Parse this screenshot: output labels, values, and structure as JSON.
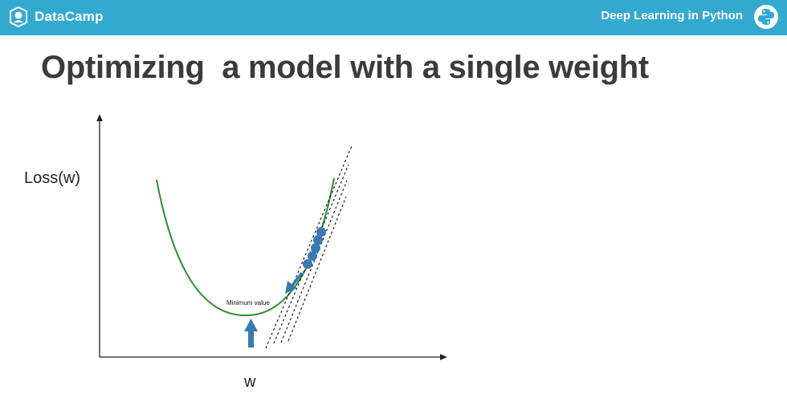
{
  "header": {
    "brand": "DataCamp",
    "course_title": "Deep Learning in Python",
    "brand_icon": "datacamp-logo-icon",
    "course_icon": "python-logo-icon",
    "bar_color": "#33a9d0"
  },
  "slide": {
    "title": "Optimizing  a model with a single weight"
  },
  "diagram": {
    "y_axis_label": "Loss(w)",
    "x_axis_label": "w",
    "minimum_annotation": "Minimum value",
    "curve_color": "#2e8b2e",
    "point_color": "#3a7ab0",
    "arrow_color": "#3a7ab0"
  }
}
